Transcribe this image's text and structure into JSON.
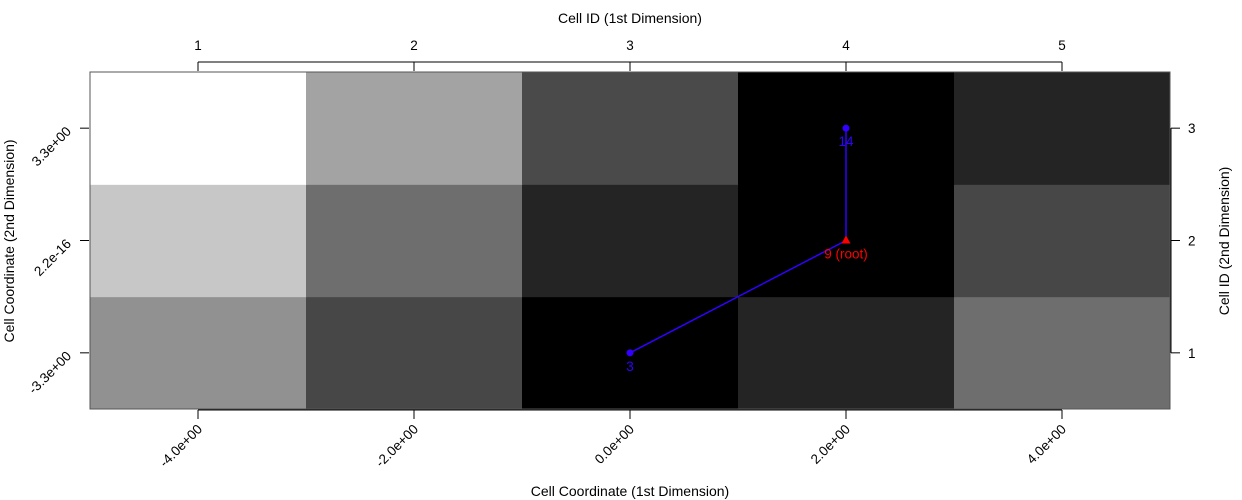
{
  "chart_data": {
    "type": "heatmap",
    "title": "",
    "top_axis_title": "Cell ID (1st Dimension)",
    "bottom_axis_title": "Cell Coordinate (1st Dimension)",
    "left_axis_title": "Cell Coordinate (2nd Dimension)",
    "right_axis_title": "Cell ID (2nd Dimension)",
    "top_ticks": [
      "1",
      "2",
      "3",
      "4",
      "5"
    ],
    "right_ticks": [
      "1",
      "2",
      "3"
    ],
    "bottom_ticks": [
      "-4.0e+00",
      "-2.0e+00",
      "0.0e+00",
      "2.0e+00",
      "4.0e+00"
    ],
    "left_ticks": [
      "-3.3e+00",
      "2.2e-16",
      "3.3e+00"
    ],
    "grid": {
      "n_cols": 5,
      "n_rows": 3,
      "gray_levels_by_row": [
        [
          0.57,
          0.28,
          0.0,
          0.14,
          0.43
        ],
        [
          0.78,
          0.43,
          0.14,
          0.0,
          0.28
        ],
        [
          1.0,
          0.64,
          0.29,
          0.0,
          0.14
        ]
      ]
    },
    "tree": {
      "color": "#3300ff",
      "root_color": "#ff0000",
      "nodes": [
        {
          "id": "9",
          "label": "9 (root)",
          "cell_x": 4,
          "cell_y": 2,
          "root": true
        },
        {
          "id": "3",
          "label": "3",
          "cell_x": 3,
          "cell_y": 1,
          "root": false
        },
        {
          "id": "14",
          "label": "14",
          "cell_x": 4,
          "cell_y": 3,
          "root": false
        }
      ],
      "edges": [
        [
          "9",
          "3"
        ],
        [
          "9",
          "14"
        ]
      ]
    }
  }
}
